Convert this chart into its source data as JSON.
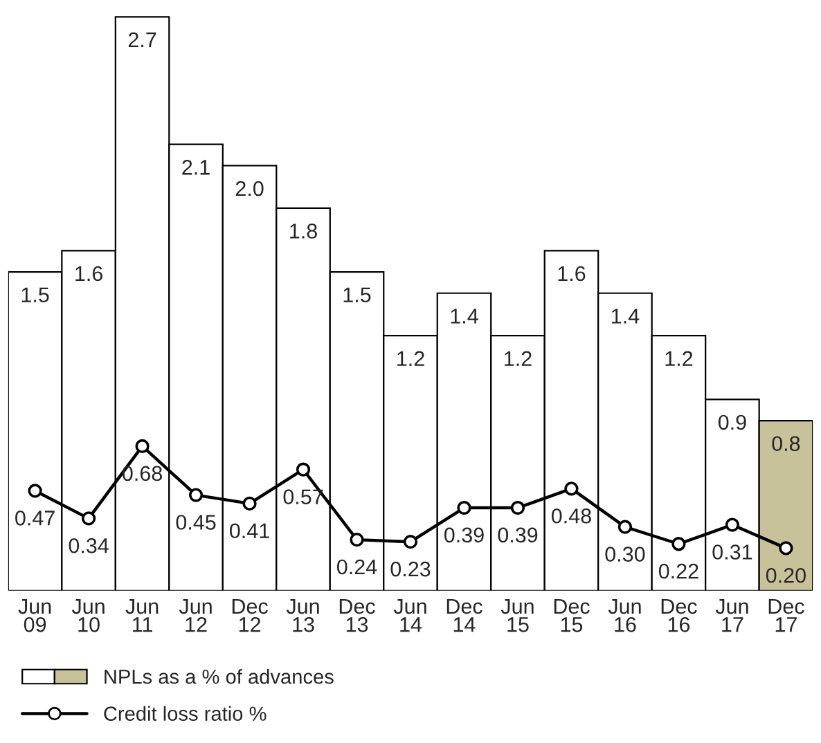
{
  "chart_data": {
    "type": "bar",
    "categories": [
      "Jun\n09",
      "Jun\n10",
      "Jun\n11",
      "Jun\n12",
      "Dec\n12",
      "Jun\n13",
      "Dec\n13",
      "Jun\n14",
      "Dec\n14",
      "Jun\n15",
      "Dec\n15",
      "Jun\n16",
      "Dec\n16",
      "Jun\n17",
      "Dec\n17"
    ],
    "series": [
      {
        "name": "NPLs as a % of advances",
        "colors": [
          "#ffffff",
          "#ffffff",
          "#ffffff",
          "#ffffff",
          "#ffffff",
          "#ffffff",
          "#ffffff",
          "#ffffff",
          "#ffffff",
          "#ffffff",
          "#ffffff",
          "#ffffff",
          "#ffffff",
          "#ffffff",
          "#c8c29a"
        ],
        "values": [
          1.5,
          1.6,
          2.7,
          2.1,
          2.0,
          1.8,
          1.5,
          1.2,
          1.4,
          1.2,
          1.6,
          1.4,
          1.2,
          0.9,
          0.8
        ],
        "value_labels": [
          "1.5",
          "1.6",
          "2.7",
          "2.1",
          "2.0",
          "1.8",
          "1.5",
          "1.2",
          "1.4",
          "1.2",
          "1.6",
          "1.4",
          "1.2",
          "0.9",
          "0.8"
        ]
      },
      {
        "name": "Credit loss ratio %",
        "type": "line",
        "color": "#000000",
        "values": [
          0.47,
          0.34,
          0.68,
          0.45,
          0.41,
          0.57,
          0.24,
          0.23,
          0.39,
          0.39,
          0.48,
          0.3,
          0.22,
          0.31,
          0.2
        ],
        "value_labels": [
          "0.47",
          "0.34",
          "0.68",
          "0.45",
          "0.41",
          "0.57",
          "0.24",
          "0.23",
          "0.39",
          "0.39",
          "0.48",
          "0.30",
          "0.22",
          "0.31",
          "0.20"
        ]
      }
    ],
    "marker": "circle",
    "legend": "bottom left",
    "grid": false
  }
}
